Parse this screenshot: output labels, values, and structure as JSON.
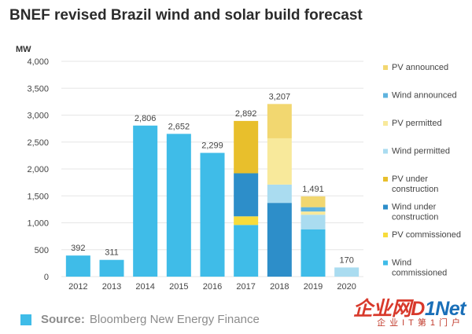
{
  "chart_data": {
    "type": "bar",
    "stacked": true,
    "title": "BNEF revised Brazil wind and solar build forecast",
    "ylabel": "MW",
    "xlabel": "",
    "ylim": [
      0,
      4000
    ],
    "yticks": [
      0,
      500,
      1000,
      1500,
      2000,
      2500,
      3000,
      3500,
      4000
    ],
    "yticklabels": [
      "0",
      "500",
      "1,000",
      "1,500",
      "2,000",
      "2,500",
      "3,000",
      "3,500",
      "4,000"
    ],
    "grid": true,
    "legend_position": "right",
    "categories": [
      "2012",
      "2013",
      "2014",
      "2015",
      "2016",
      "2017",
      "2018",
      "2019",
      "2020"
    ],
    "totals": [
      392,
      311,
      2806,
      2652,
      2299,
      2892,
      3207,
      1491,
      170
    ],
    "total_labels": [
      "392",
      "311",
      "2,806",
      "2,652",
      "2,299",
      "2,892",
      "3,207",
      "1,491",
      "170"
    ],
    "series": [
      {
        "name": "Wind commissioned",
        "color": "#3fbce8",
        "values": [
          392,
          311,
          2806,
          2652,
          2299,
          960,
          0,
          880,
          0
        ]
      },
      {
        "name": "PV commissioned",
        "color": "#f7dc3c",
        "values": [
          0,
          0,
          0,
          0,
          0,
          160,
          0,
          0,
          0
        ]
      },
      {
        "name": "Wind under construction",
        "color": "#2d8ec9",
        "values": [
          0,
          0,
          0,
          0,
          0,
          800,
          1370,
          0,
          0
        ]
      },
      {
        "name": "PV under construction",
        "color": "#e8bf2c",
        "values": [
          0,
          0,
          0,
          0,
          0,
          972,
          0,
          0,
          0
        ]
      },
      {
        "name": "Wind permitted",
        "color": "#aadcf0",
        "values": [
          0,
          0,
          0,
          0,
          0,
          0,
          340,
          270,
          170
        ]
      },
      {
        "name": "PV permitted",
        "color": "#f8e99b",
        "values": [
          0,
          0,
          0,
          0,
          0,
          0,
          860,
          60,
          0
        ]
      },
      {
        "name": "Wind announced",
        "color": "#5fb3de",
        "values": [
          0,
          0,
          0,
          0,
          0,
          0,
          0,
          80,
          0
        ]
      },
      {
        "name": "PV announced",
        "color": "#f2d770",
        "values": [
          0,
          0,
          0,
          0,
          0,
          0,
          637,
          201,
          0
        ]
      }
    ],
    "legend_items": [
      {
        "label": "PV announced",
        "color": "#f2d770"
      },
      {
        "label": "Wind announced",
        "color": "#5fb3de"
      },
      {
        "label": "PV permitted",
        "color": "#f8e99b"
      },
      {
        "label": "Wind permitted",
        "color": "#aadcf0"
      },
      {
        "label": "PV under construction",
        "color": "#e8bf2c"
      },
      {
        "label": "Wind under construction",
        "color": "#2d8ec9"
      },
      {
        "label": "PV commissioned",
        "color": "#f7dc3c"
      },
      {
        "label": "Wind commissioned",
        "color": "#3fbce8"
      }
    ]
  },
  "source": {
    "label": "Source:",
    "text": "Bloomberg New Energy Finance",
    "swatch_color": "#3fbce8"
  },
  "watermark": {
    "part1": "企业网",
    "part2": "D",
    "part3": "1Net",
    "subtitle": "企业IT第1门户",
    "color_red": "#d8392b",
    "color_blue": "#1a6fb8"
  }
}
